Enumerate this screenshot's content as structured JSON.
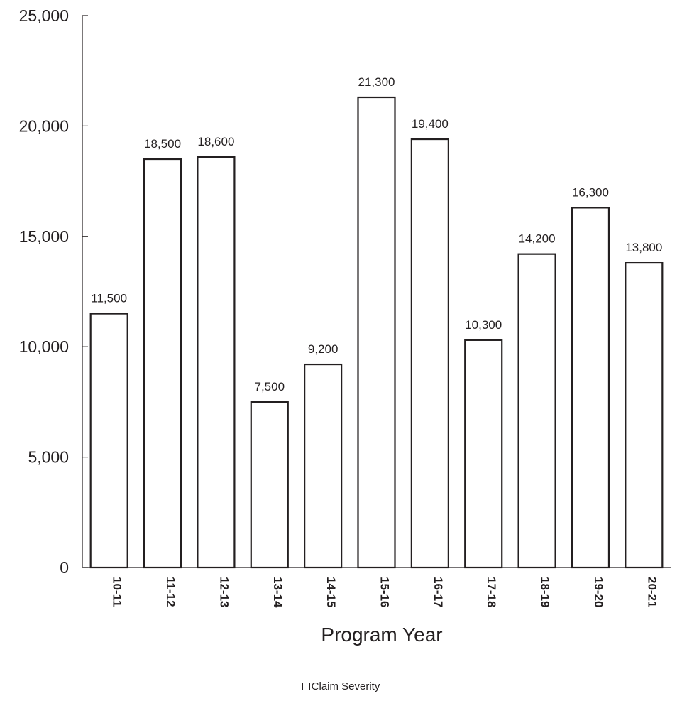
{
  "chart_data": {
    "type": "bar",
    "title": "",
    "xlabel": "Program Year",
    "ylabel": "",
    "ylim": [
      0,
      25000
    ],
    "y_ticks": [
      0,
      5000,
      10000,
      15000,
      20000,
      25000
    ],
    "y_tick_labels": [
      "0",
      "5,000",
      "10,000",
      "15,000",
      "20,000",
      "25,000"
    ],
    "categories": [
      "10-11",
      "11-12",
      "12-13",
      "13-14",
      "14-15",
      "15-16",
      "16-17",
      "17-18",
      "18-19",
      "19-20",
      "20-21"
    ],
    "series": [
      {
        "name": "Claim Severity",
        "values": [
          11500,
          18500,
          18600,
          7500,
          9200,
          21300,
          19400,
          10300,
          14200,
          16300,
          13800
        ],
        "data_labels": [
          "11,500",
          "18,500",
          "18,600",
          "7,500",
          "9,200",
          "21,300",
          "19,400",
          "10,300",
          "14,200",
          "16,300",
          "13,800"
        ],
        "fill": "#ffffff",
        "stroke": "#231f20"
      }
    ],
    "grid": false,
    "legend_position": "bottom-center"
  }
}
